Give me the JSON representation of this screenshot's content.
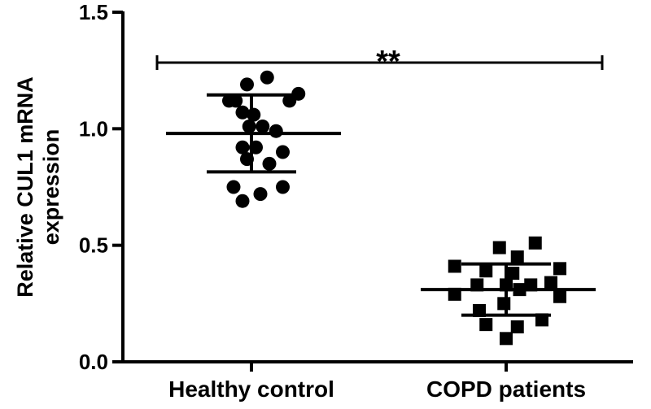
{
  "chart_data": {
    "type": "scatter",
    "title": "",
    "ylabel_lines": [
      "Relative CUL1 mRNA",
      "expression"
    ],
    "xlabel": "",
    "ylim": [
      0,
      1.5
    ],
    "yticks": [
      {
        "value": 0.0,
        "label": "0.0"
      },
      {
        "value": 0.5,
        "label": "0.5"
      },
      {
        "value": 1.0,
        "label": "1.0"
      },
      {
        "value": 1.5,
        "label": "1.5"
      }
    ],
    "categories": [
      "Healthy control",
      "COPD patients"
    ],
    "grid": false,
    "groups": [
      {
        "category": "Healthy control",
        "marker": "circle",
        "mean": 0.98,
        "sd_upper": 1.145,
        "sd_lower": 0.815,
        "points": [
          {
            "offset": -0.1,
            "value": 1.12
          },
          {
            "offset": -0.07,
            "value": 1.12
          },
          {
            "offset": -0.02,
            "value": 1.19
          },
          {
            "offset": 0.07,
            "value": 1.22
          },
          {
            "offset": 0.17,
            "value": 1.12
          },
          {
            "offset": 0.21,
            "value": 1.15
          },
          {
            "offset": -0.04,
            "value": 1.07
          },
          {
            "offset": 0.01,
            "value": 1.06
          },
          {
            "offset": 0.05,
            "value": 1.01
          },
          {
            "offset": -0.01,
            "value": 1.01
          },
          {
            "offset": 0.11,
            "value": 0.99
          },
          {
            "offset": -0.04,
            "value": 0.92
          },
          {
            "offset": 0.02,
            "value": 0.92
          },
          {
            "offset": 0.14,
            "value": 0.9
          },
          {
            "offset": -0.02,
            "value": 0.87
          },
          {
            "offset": 0.08,
            "value": 0.85
          },
          {
            "offset": -0.08,
            "value": 0.75
          },
          {
            "offset": 0.14,
            "value": 0.75
          },
          {
            "offset": 0.04,
            "value": 0.72
          },
          {
            "offset": -0.04,
            "value": 0.69
          }
        ]
      },
      {
        "category": "COPD patients",
        "marker": "square",
        "mean": 0.31,
        "sd_upper": 0.42,
        "sd_lower": 0.2,
        "points": [
          {
            "offset": -0.03,
            "value": 0.49
          },
          {
            "offset": 0.13,
            "value": 0.51
          },
          {
            "offset": 0.05,
            "value": 0.45
          },
          {
            "offset": -0.23,
            "value": 0.41
          },
          {
            "offset": -0.09,
            "value": 0.39
          },
          {
            "offset": 0.03,
            "value": 0.38
          },
          {
            "offset": 0.24,
            "value": 0.4
          },
          {
            "offset": -0.13,
            "value": 0.33
          },
          {
            "offset": 0.0,
            "value": 0.33
          },
          {
            "offset": 0.11,
            "value": 0.33
          },
          {
            "offset": 0.2,
            "value": 0.34
          },
          {
            "offset": -0.23,
            "value": 0.29
          },
          {
            "offset": 0.06,
            "value": 0.31
          },
          {
            "offset": 0.24,
            "value": 0.28
          },
          {
            "offset": -0.01,
            "value": 0.25
          },
          {
            "offset": -0.12,
            "value": 0.22
          },
          {
            "offset": 0.16,
            "value": 0.18
          },
          {
            "offset": -0.09,
            "value": 0.16
          },
          {
            "offset": 0.05,
            "value": 0.15
          },
          {
            "offset": 0.0,
            "value": 0.1
          }
        ]
      }
    ],
    "significance": {
      "label": "**",
      "from": "Healthy control",
      "to": "COPD patients"
    }
  }
}
